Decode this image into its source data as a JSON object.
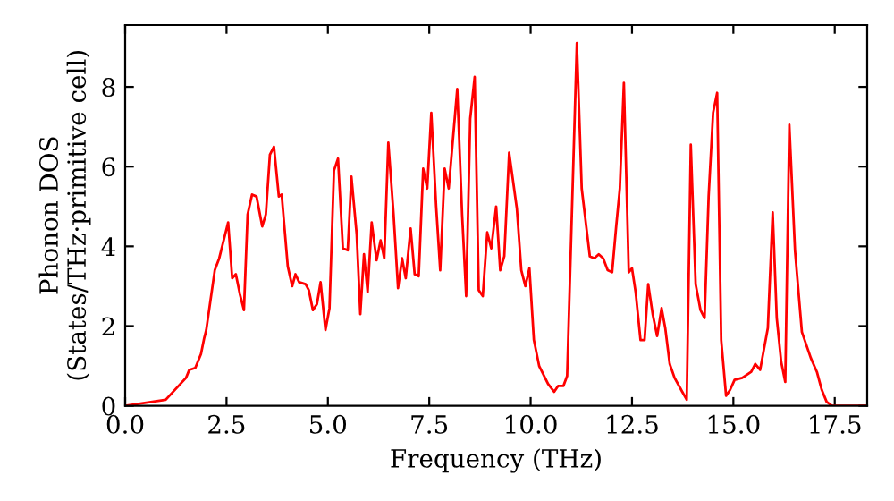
{
  "chart_data": {
    "type": "line",
    "xlabel": "Frequency (THz)",
    "ylabel": "Phonon DOS\n(States/THz·primitive cell)",
    "x": [
      0,
      1.0,
      1.5,
      1.58,
      1.73,
      1.87,
      1.95,
      2.0,
      2.21,
      2.32,
      2.54,
      2.64,
      2.73,
      2.83,
      2.93,
      3.02,
      3.13,
      3.24,
      3.38,
      3.47,
      3.57,
      3.67,
      3.79,
      3.86,
      4.01,
      4.12,
      4.2,
      4.29,
      4.45,
      4.53,
      4.63,
      4.73,
      4.82,
      4.94,
      5.04,
      5.15,
      5.25,
      5.37,
      5.49,
      5.58,
      5.71,
      5.8,
      5.89,
      5.98,
      6.08,
      6.2,
      6.3,
      6.39,
      6.49,
      6.62,
      6.73,
      6.83,
      6.92,
      7.04,
      7.14,
      7.24,
      7.35,
      7.45,
      7.55,
      7.67,
      7.77,
      7.88,
      7.98,
      8.19,
      8.31,
      8.41,
      8.51,
      8.62,
      8.72,
      8.82,
      8.93,
      9.03,
      9.15,
      9.25,
      9.35,
      9.47,
      9.66,
      9.77,
      9.87,
      9.97,
      10.08,
      10.21,
      10.43,
      10.58,
      10.68,
      10.81,
      10.9,
      11.14,
      11.26,
      11.46,
      11.57,
      11.68,
      11.79,
      11.9,
      12.01,
      12.11,
      12.2,
      12.3,
      12.42,
      12.5,
      12.59,
      12.71,
      12.81,
      12.9,
      13.01,
      13.12,
      13.23,
      13.32,
      13.43,
      13.55,
      13.74,
      13.85,
      13.95,
      14.07,
      14.19,
      14.29,
      14.39,
      14.5,
      14.6,
      14.7,
      14.82,
      14.92,
      15.03,
      15.22,
      15.44,
      15.54,
      15.66,
      15.85,
      15.97,
      16.07,
      16.18,
      16.28,
      16.38,
      16.52,
      16.69,
      16.91,
      17.06,
      17.18,
      17.3,
      17.43,
      18.3
    ],
    "series": [
      {
        "color": "#ff0000",
        "values": [
          0,
          0.15,
          0.7,
          0.9,
          0.95,
          1.3,
          1.7,
          1.9,
          3.4,
          3.7,
          4.6,
          3.2,
          3.3,
          2.8,
          2.4,
          4.8,
          5.3,
          5.25,
          4.5,
          4.8,
          6.3,
          6.5,
          5.25,
          5.3,
          3.5,
          3.0,
          3.3,
          3.1,
          3.05,
          2.9,
          2.4,
          2.55,
          3.1,
          1.9,
          2.45,
          5.9,
          6.2,
          3.95,
          3.9,
          5.75,
          4.3,
          2.3,
          3.8,
          2.85,
          4.6,
          3.65,
          4.15,
          3.7,
          6.6,
          4.8,
          2.95,
          3.7,
          3.2,
          4.45,
          3.3,
          3.25,
          5.95,
          5.45,
          7.35,
          5.0,
          3.4,
          5.95,
          5.45,
          7.95,
          4.8,
          2.75,
          7.2,
          8.25,
          2.9,
          2.75,
          4.35,
          3.95,
          5.0,
          3.4,
          3.75,
          6.35,
          4.95,
          3.4,
          3.0,
          3.45,
          1.65,
          1.0,
          0.55,
          0.35,
          0.5,
          0.5,
          0.75,
          9.1,
          5.45,
          3.75,
          3.7,
          3.8,
          3.7,
          3.4,
          3.35,
          4.5,
          5.45,
          8.1,
          3.35,
          3.45,
          2.85,
          1.65,
          1.65,
          3.05,
          2.3,
          1.75,
          2.45,
          1.95,
          1.05,
          0.7,
          0.35,
          0.15,
          6.55,
          3.05,
          2.4,
          2.2,
          5.25,
          7.35,
          7.85,
          1.65,
          0.25,
          0.4,
          0.65,
          0.7,
          0.85,
          1.05,
          0.9,
          1.95,
          4.85,
          2.2,
          1.1,
          0.6,
          7.05,
          3.9,
          1.85,
          1.2,
          0.85,
          0.4,
          0.1,
          0,
          0
        ]
      }
    ],
    "xlim": [
      0,
      18.3
    ],
    "ylim": [
      0,
      9.55
    ],
    "xticks": [
      {
        "value": 0,
        "label": "0.0"
      },
      2.5,
      {
        "value": 5,
        "label": "5.0"
      },
      7.5,
      {
        "value": 10,
        "label": "10.0"
      },
      12.5,
      {
        "value": 15,
        "label": "15.0"
      },
      17.5
    ],
    "yticks": [
      0,
      2,
      4,
      6,
      8
    ],
    "grid": false,
    "marker": "none",
    "line_style": "solid"
  }
}
